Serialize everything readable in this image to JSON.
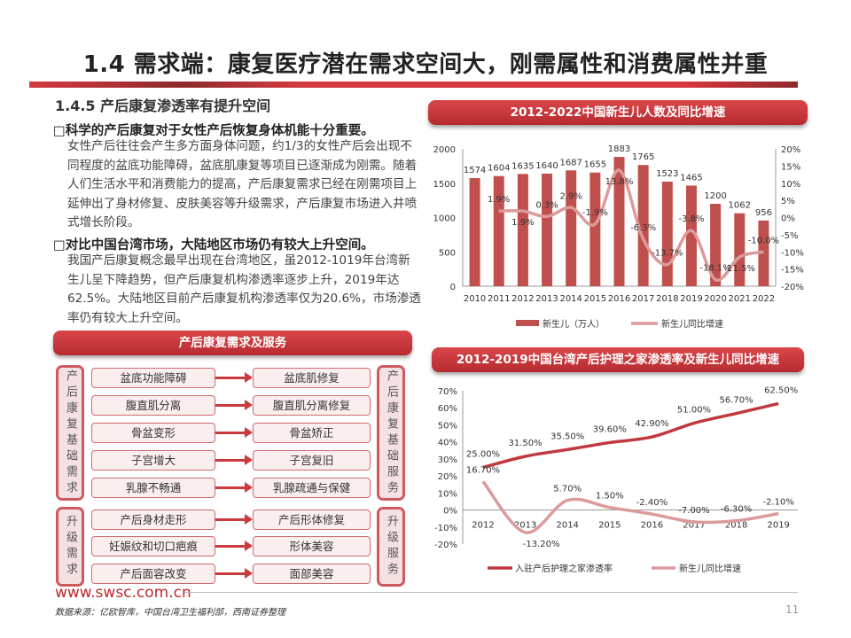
{
  "title": "1.4 需求端：康复医疗潜在需求空间大，刚需属性和消费属性并重",
  "section": {
    "heading": "1.4.5 产后康复渗透率有提升空间",
    "bullets": [
      {
        "title": "□科学的产后康复对于女性产后恢复身体机能十分重要。",
        "text": "女性产后往往会产生多方面身体问题，约1/3的女性产后会出现不同程度的盆底功能障碍，盆底肌康复等项目已逐渐成为刚需。随着人们生活水平和消费能力的提高，产后康复需求已经在刚需项目上延伸出了身材修复、皮肤美容等升级需求，产后康复市场进入井喷式增长阶段。"
      },
      {
        "title": "□对比中国台湾市场，大陆地区市场仍有较大上升空间。",
        "text": "我国产后康复概念最早出现在台湾地区，虽2012-1019年台湾新生儿呈下降趋势，但产后康复机构渗透率逐步上升，2019年达62.5%。大陆地区目前产后康复机构渗透率仅为20.6%，市场渗透率仍有较大上升空间。"
      }
    ]
  },
  "diagram": {
    "title": "产后康复需求及服务",
    "groups": [
      {
        "left_label": "产后康复基础需求",
        "right_label": "产后康复基础服务",
        "rows": [
          [
            "盆底功能障碍",
            "盆底肌修复"
          ],
          [
            "腹直肌分离",
            "腹直肌分离修复"
          ],
          [
            "骨盆变形",
            "骨盆矫正"
          ],
          [
            "子宫增大",
            "子宫复旧"
          ],
          [
            "乳腺不畅通",
            "乳腺疏通与保健"
          ]
        ]
      },
      {
        "left_label": "升级需求",
        "right_label": "升级服务",
        "rows": [
          [
            "产后身材走形",
            "产后形体修复"
          ],
          [
            "妊娠纹和切口疤痕",
            "形体美容"
          ],
          [
            "产后面容改变",
            "面部美容"
          ]
        ]
      }
    ]
  },
  "chart_data": [
    {
      "type": "bar",
      "title": "2012-2022中国新生儿人数及同比增速",
      "categories": [
        "2010",
        "2011",
        "2012",
        "2013",
        "2014",
        "2015",
        "2016",
        "2017",
        "2018",
        "2019",
        "2020",
        "2021",
        "2022"
      ],
      "series": [
        {
          "name": "新生儿（万人）",
          "type": "bar",
          "axis": "left",
          "values": [
            1574,
            1604,
            1635,
            1640,
            1687,
            1655,
            1883,
            1765,
            1523,
            1465,
            1200,
            1062,
            956
          ],
          "labels": [
            "1574",
            "1604",
            "1635",
            "1640",
            "1687",
            "1655",
            "1883",
            "1765",
            "1523",
            "1465",
            "1200",
            "1062",
            "956"
          ],
          "color": "#c0504d"
        },
        {
          "name": "新生儿同比增速",
          "type": "line",
          "axis": "right",
          "values": [
            null,
            1.9,
            1.9,
            0.3,
            2.9,
            -1.9,
            13.8,
            -6.3,
            -13.7,
            -3.8,
            -18.1,
            -11.5,
            -10.0
          ],
          "labels": [
            "",
            "1.9%",
            "1.9%",
            "0.3%",
            "2.9%",
            "-1.9%",
            "13.8%",
            "-6.3%",
            "-13.7%",
            "-3.8%",
            "-18.1%",
            "-11.5%",
            "-10.0%"
          ],
          "color": "#dc9a9a"
        }
      ],
      "ylim": [
        0,
        2000
      ],
      "yticks": [
        "0",
        "500",
        "1000",
        "1500",
        "2000"
      ],
      "y2lim": [
        -20,
        20
      ],
      "y2ticks": [
        "-20%",
        "-15%",
        "-10%",
        "-5%",
        "0%",
        "5%",
        "10%",
        "15%",
        "20%"
      ],
      "grid": false,
      "legend": "bottom"
    },
    {
      "type": "line",
      "title": "2012-2019中国台湾产后护理之家渗透率及新生儿同比增速",
      "categories": [
        "2012",
        "2013",
        "2014",
        "2015",
        "2016",
        "2017",
        "2018",
        "2019"
      ],
      "series": [
        {
          "name": "入驻产后护理之家渗透率",
          "values": [
            25.0,
            31.5,
            35.5,
            39.6,
            42.9,
            51.0,
            56.7,
            62.5
          ],
          "labels": [
            "25.00%",
            "31.50%",
            "35.50%",
            "39.60%",
            "42.90%",
            "51.00%",
            "56.70%",
            "62.50%"
          ],
          "color": "#c0393e"
        },
        {
          "name": "新生儿同比增速",
          "values": [
            16.7,
            -13.2,
            5.7,
            1.5,
            -2.4,
            -7.0,
            -6.3,
            -2.1
          ],
          "labels": [
            "16.70%",
            "-13.20%",
            "5.70%",
            "1.50%",
            "-2.40%",
            "-7.00%",
            "-6.30%",
            "-2.10%"
          ],
          "color": "#dc9a9a"
        }
      ],
      "ylim": [
        -20,
        70
      ],
      "yticks": [
        "-20%",
        "-10%",
        "0%",
        "10%",
        "20%",
        "30%",
        "40%",
        "50%",
        "60%",
        "70%"
      ],
      "grid": false,
      "legend": "bottom"
    }
  ],
  "footer": {
    "website": "www.swsc.com.cn",
    "source": "数据来源：亿欧智库，中国台湾卫生福利部，西南证券整理",
    "page": "11"
  }
}
